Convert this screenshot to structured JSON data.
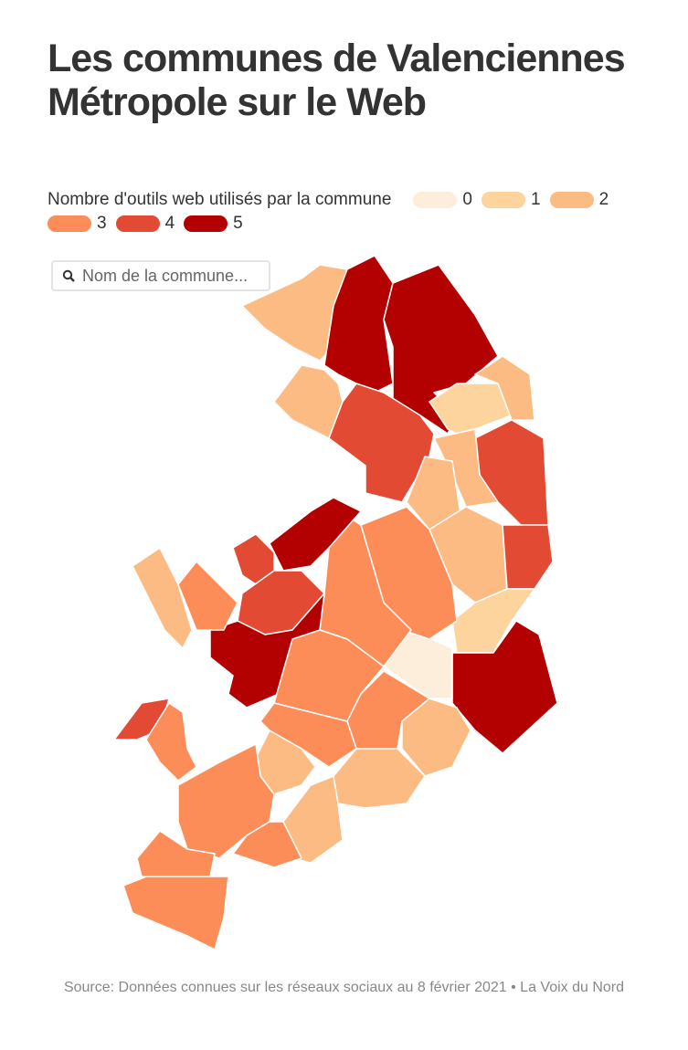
{
  "title": "Les communes de Valenciennes Métropole sur le Web",
  "legend": {
    "title": "Nombre d'outils web utilisés par la commune",
    "classes": [
      {
        "value": 0,
        "color": "#fdeedb"
      },
      {
        "value": 1,
        "color": "#fdd49e"
      },
      {
        "value": 2,
        "color": "#fdbb84"
      },
      {
        "value": 3,
        "color": "#fc8d59"
      },
      {
        "value": 4,
        "color": "#e34a33"
      },
      {
        "value": 5,
        "color": "#b30000"
      }
    ]
  },
  "search": {
    "placeholder": "Nom de la commune..."
  },
  "regions": [
    2,
    5,
    5,
    2,
    4,
    1,
    2,
    4,
    2,
    2,
    2,
    4,
    1,
    5,
    0,
    3,
    3,
    5,
    4,
    4,
    5,
    2,
    3,
    3,
    3,
    2,
    3,
    2,
    2,
    2,
    4,
    3,
    3,
    3,
    3,
    3
  ],
  "source": "Source: Données connues sur les réseaux sociaux au 8 février 2021 • La Voix du Nord"
}
